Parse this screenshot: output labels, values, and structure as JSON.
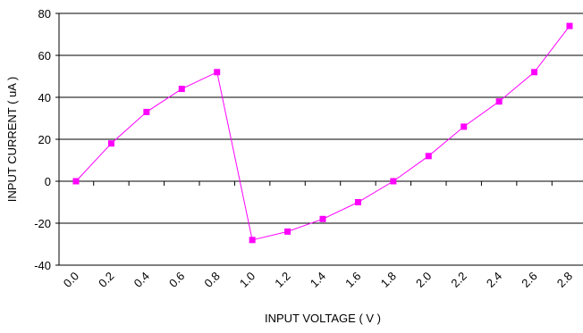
{
  "chart_data": {
    "type": "line",
    "xlabel": "INPUT VOLTAGE ( V )",
    "ylabel": "INPUT CURRENT ( uA )",
    "ylim": [
      -40,
      80
    ],
    "yticks": [
      "-40",
      "-20",
      "0",
      "20",
      "40",
      "60",
      "80"
    ],
    "x_tick_labels": [
      "0.0",
      "0.2",
      "0.4",
      "0.6",
      "0.8",
      "1.0",
      "1.2",
      "1.4",
      "1.6",
      "1.8",
      "2.0",
      "2.2",
      "2.4",
      "2.6",
      "2.8"
    ],
    "grid": "horizontal",
    "legend": "none",
    "series": [
      {
        "color": "#ff00ff",
        "marker": "square",
        "x": [
          0.0,
          0.2,
          0.4,
          0.6,
          0.8,
          1.0,
          1.2,
          1.4,
          1.6,
          1.8,
          2.0,
          2.2,
          2.4,
          2.6,
          2.8
        ],
        "y": [
          0,
          18,
          33,
          44,
          52,
          -28,
          -24,
          -18,
          -10,
          0,
          12,
          26,
          38,
          52,
          74
        ]
      }
    ]
  }
}
